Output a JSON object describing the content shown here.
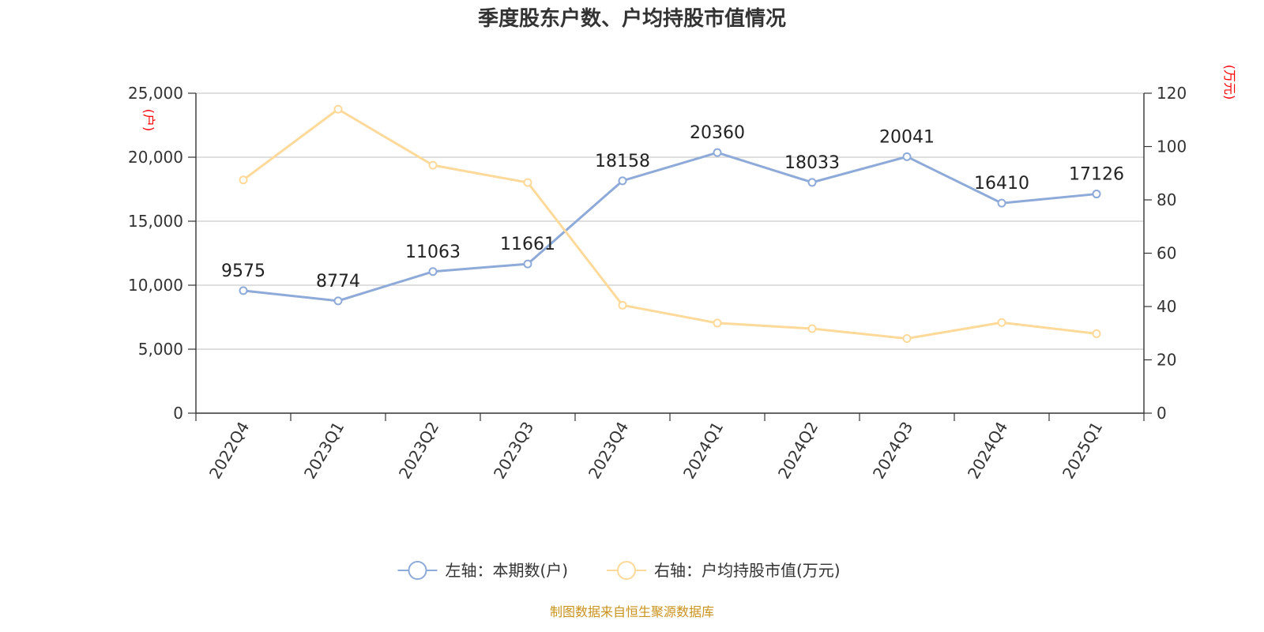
{
  "chart_data": {
    "type": "line",
    "title": "季度股东户数、户均持股市值情况",
    "categories": [
      "2022Q4",
      "2023Q1",
      "2023Q2",
      "2023Q3",
      "2023Q4",
      "2024Q1",
      "2024Q2",
      "2024Q3",
      "2024Q4",
      "2025Q1"
    ],
    "y_left": {
      "unit": "(户)",
      "ticks": [
        "0",
        "5,000",
        "10,000",
        "15,000",
        "20,000",
        "25,000"
      ],
      "ylim": [
        0,
        25000
      ]
    },
    "y_right": {
      "unit": "(万元)",
      "ticks": [
        "0",
        "20",
        "40",
        "60",
        "80",
        "100",
        "120"
      ],
      "ylim": [
        0,
        120
      ]
    },
    "grid": true,
    "legend_position": "bottom",
    "series": [
      {
        "name": "左轴：本期数(户)",
        "axis": "left",
        "color": "#8eaad8",
        "values": [
          9575,
          8774,
          11063,
          11661,
          18158,
          20360,
          18033,
          20041,
          16410,
          17126
        ],
        "labels": [
          "9575",
          "8774",
          "11063",
          "11661",
          "18158",
          "20360",
          "18033",
          "20041",
          "16410",
          "17126"
        ]
      },
      {
        "name": "右轴：户均持股市值(万元)",
        "axis": "right",
        "color": "#fdd99a",
        "values": [
          87.5,
          114,
          93,
          86.5,
          40.5,
          33.8,
          31.7,
          28,
          34,
          29.8
        ]
      }
    ],
    "source": "制图数据来自恒生聚源数据库"
  }
}
